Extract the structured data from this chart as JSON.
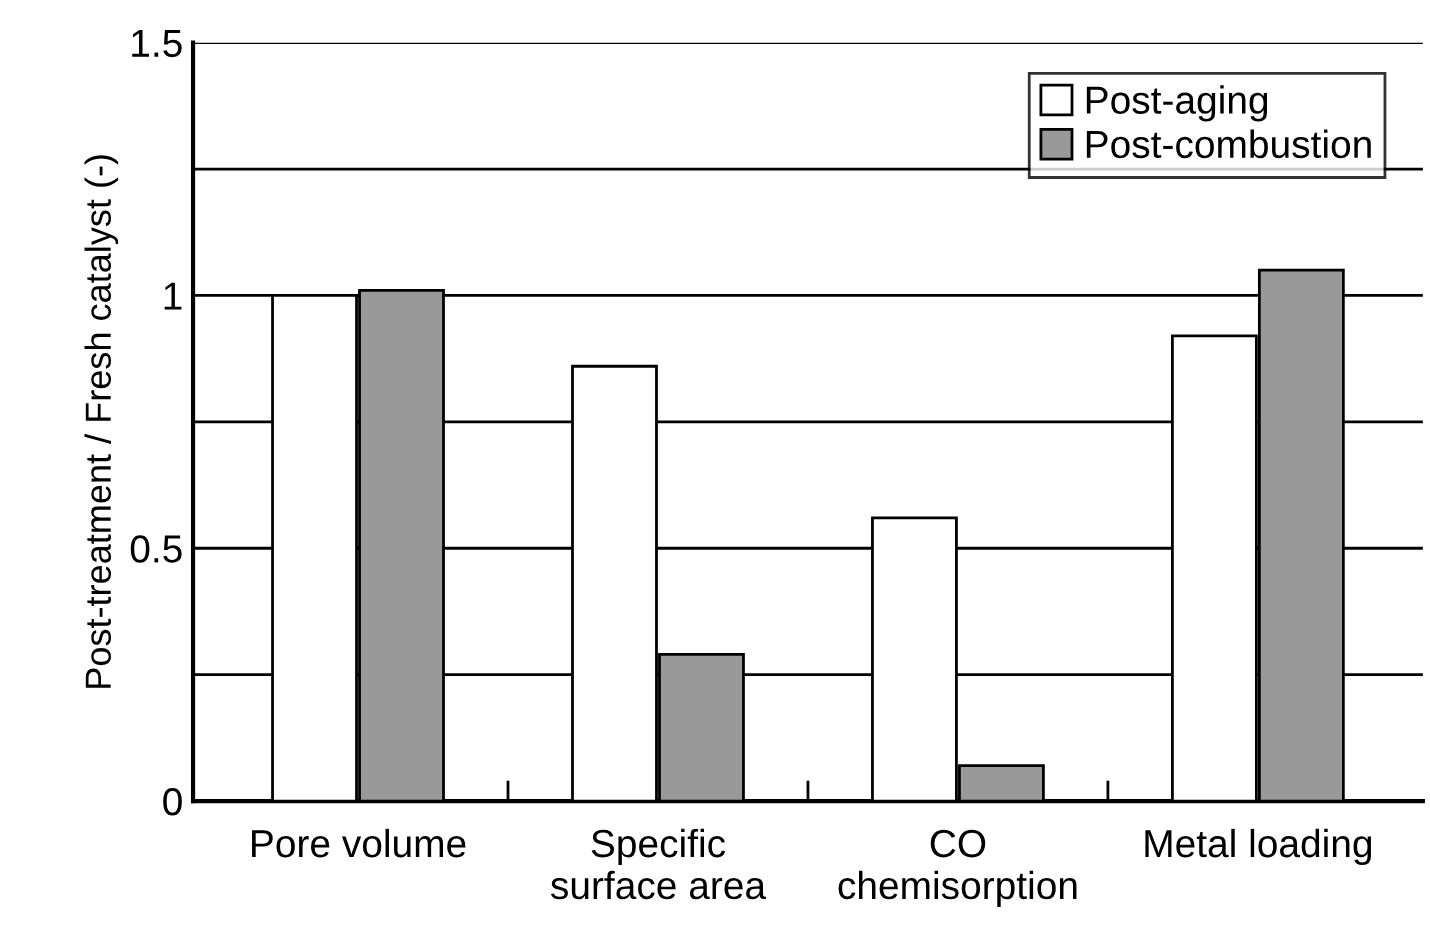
{
  "chart_data": {
    "type": "bar",
    "ylabel": "Post-treatment / Fresh catalyst (-)",
    "categories": [
      "Pore volume",
      "Specific\nsurface area",
      "CO\nchemisorption",
      "Metal loading"
    ],
    "series": [
      {
        "name": "Post-aging",
        "color": "#ffffff",
        "values": [
          1.0,
          0.86,
          0.56,
          0.92
        ]
      },
      {
        "name": "Post-combustion",
        "color": "#999999",
        "values": [
          1.01,
          0.29,
          0.07,
          1.05
        ]
      }
    ],
    "ylim": [
      0,
      1.5
    ],
    "yticks": [
      0,
      {
        "value": 0.25,
        "label": null
      },
      0.5,
      {
        "value": 0.75,
        "label": null
      },
      1,
      {
        "value": 1.25,
        "label": null
      },
      1.5
    ],
    "grid": "y",
    "legend": "top right"
  }
}
